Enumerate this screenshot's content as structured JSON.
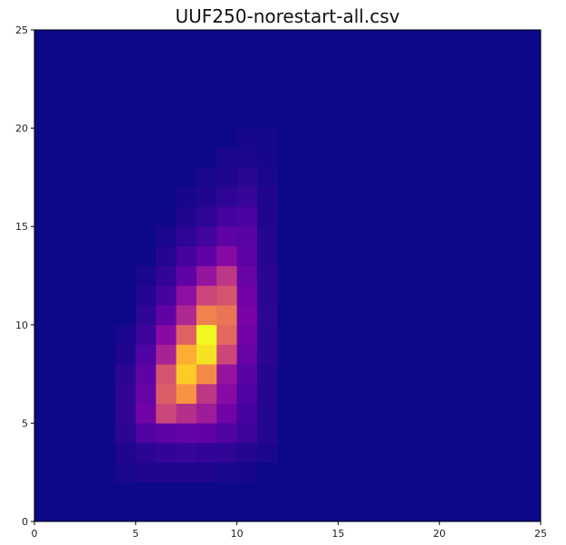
{
  "chart_data": {
    "type": "heatmap",
    "title": "UUF250-norestart-all.csv",
    "xlabel": "",
    "ylabel": "",
    "xlim": [
      0,
      25
    ],
    "ylim": [
      0,
      25
    ],
    "grid": false,
    "colormap": "plasma",
    "background_color": "#0d0887",
    "x_ticks": [
      "0",
      "5",
      "10",
      "15",
      "20",
      "25"
    ],
    "y_ticks": [
      "0",
      "5",
      "10",
      "15",
      "20",
      "25"
    ],
    "x_tick_values": [
      0,
      5,
      10,
      15,
      20,
      25
    ],
    "y_tick_values": [
      0,
      5,
      10,
      15,
      20,
      25
    ],
    "cell_size": 1,
    "cells": [
      {
        "x": 4,
        "y": 2,
        "v": 0.03
      },
      {
        "x": 5,
        "y": 2,
        "v": 0.04
      },
      {
        "x": 6,
        "y": 2,
        "v": 0.04
      },
      {
        "x": 7,
        "y": 2,
        "v": 0.04
      },
      {
        "x": 8,
        "y": 2,
        "v": 0.04
      },
      {
        "x": 9,
        "y": 2,
        "v": 0.03
      },
      {
        "x": 10,
        "y": 2,
        "v": 0.02
      },
      {
        "x": 4,
        "y": 3,
        "v": 0.04
      },
      {
        "x": 5,
        "y": 3,
        "v": 0.06
      },
      {
        "x": 6,
        "y": 3,
        "v": 0.08
      },
      {
        "x": 7,
        "y": 3,
        "v": 0.09
      },
      {
        "x": 8,
        "y": 3,
        "v": 0.08
      },
      {
        "x": 9,
        "y": 3,
        "v": 0.07
      },
      {
        "x": 10,
        "y": 3,
        "v": 0.05
      },
      {
        "x": 11,
        "y": 3,
        "v": 0.03
      },
      {
        "x": 4,
        "y": 4,
        "v": 0.06
      },
      {
        "x": 5,
        "y": 4,
        "v": 0.14
      },
      {
        "x": 6,
        "y": 4,
        "v": 0.17
      },
      {
        "x": 7,
        "y": 4,
        "v": 0.19
      },
      {
        "x": 8,
        "y": 4,
        "v": 0.18
      },
      {
        "x": 9,
        "y": 4,
        "v": 0.14
      },
      {
        "x": 10,
        "y": 4,
        "v": 0.1
      },
      {
        "x": 11,
        "y": 4,
        "v": 0.05
      },
      {
        "x": 4,
        "y": 5,
        "v": 0.08
      },
      {
        "x": 5,
        "y": 5,
        "v": 0.22
      },
      {
        "x": 6,
        "y": 5,
        "v": 0.5
      },
      {
        "x": 7,
        "y": 5,
        "v": 0.42
      },
      {
        "x": 8,
        "y": 5,
        "v": 0.35
      },
      {
        "x": 9,
        "y": 5,
        "v": 0.22
      },
      {
        "x": 10,
        "y": 5,
        "v": 0.12
      },
      {
        "x": 11,
        "y": 5,
        "v": 0.05
      },
      {
        "x": 4,
        "y": 6,
        "v": 0.08
      },
      {
        "x": 5,
        "y": 6,
        "v": 0.2
      },
      {
        "x": 6,
        "y": 6,
        "v": 0.58
      },
      {
        "x": 7,
        "y": 6,
        "v": 0.75
      },
      {
        "x": 8,
        "y": 6,
        "v": 0.45
      },
      {
        "x": 9,
        "y": 6,
        "v": 0.28
      },
      {
        "x": 10,
        "y": 6,
        "v": 0.14
      },
      {
        "x": 11,
        "y": 6,
        "v": 0.05
      },
      {
        "x": 4,
        "y": 7,
        "v": 0.06
      },
      {
        "x": 5,
        "y": 7,
        "v": 0.18
      },
      {
        "x": 6,
        "y": 7,
        "v": 0.55
      },
      {
        "x": 7,
        "y": 7,
        "v": 0.9
      },
      {
        "x": 8,
        "y": 7,
        "v": 0.72
      },
      {
        "x": 9,
        "y": 7,
        "v": 0.32
      },
      {
        "x": 10,
        "y": 7,
        "v": 0.16
      },
      {
        "x": 11,
        "y": 7,
        "v": 0.05
      },
      {
        "x": 4,
        "y": 8,
        "v": 0.04
      },
      {
        "x": 5,
        "y": 8,
        "v": 0.14
      },
      {
        "x": 6,
        "y": 8,
        "v": 0.38
      },
      {
        "x": 7,
        "y": 8,
        "v": 0.82
      },
      {
        "x": 8,
        "y": 8,
        "v": 0.95
      },
      {
        "x": 9,
        "y": 8,
        "v": 0.5
      },
      {
        "x": 10,
        "y": 8,
        "v": 0.2
      },
      {
        "x": 11,
        "y": 8,
        "v": 0.06
      },
      {
        "x": 4,
        "y": 9,
        "v": 0.03
      },
      {
        "x": 5,
        "y": 9,
        "v": 0.1
      },
      {
        "x": 6,
        "y": 9,
        "v": 0.28
      },
      {
        "x": 7,
        "y": 9,
        "v": 0.6
      },
      {
        "x": 8,
        "y": 9,
        "v": 1.0
      },
      {
        "x": 9,
        "y": 9,
        "v": 0.62
      },
      {
        "x": 10,
        "y": 9,
        "v": 0.22
      },
      {
        "x": 11,
        "y": 9,
        "v": 0.06
      },
      {
        "x": 5,
        "y": 10,
        "v": 0.07
      },
      {
        "x": 6,
        "y": 10,
        "v": 0.18
      },
      {
        "x": 7,
        "y": 10,
        "v": 0.4
      },
      {
        "x": 8,
        "y": 10,
        "v": 0.7
      },
      {
        "x": 9,
        "y": 10,
        "v": 0.66
      },
      {
        "x": 10,
        "y": 10,
        "v": 0.24
      },
      {
        "x": 11,
        "y": 10,
        "v": 0.07
      },
      {
        "x": 5,
        "y": 11,
        "v": 0.05
      },
      {
        "x": 6,
        "y": 11,
        "v": 0.12
      },
      {
        "x": 7,
        "y": 11,
        "v": 0.3
      },
      {
        "x": 8,
        "y": 11,
        "v": 0.5
      },
      {
        "x": 9,
        "y": 11,
        "v": 0.55
      },
      {
        "x": 10,
        "y": 11,
        "v": 0.22
      },
      {
        "x": 11,
        "y": 11,
        "v": 0.06
      },
      {
        "x": 5,
        "y": 12,
        "v": 0.03
      },
      {
        "x": 6,
        "y": 12,
        "v": 0.08
      },
      {
        "x": 7,
        "y": 12,
        "v": 0.18
      },
      {
        "x": 8,
        "y": 12,
        "v": 0.32
      },
      {
        "x": 9,
        "y": 12,
        "v": 0.45
      },
      {
        "x": 10,
        "y": 12,
        "v": 0.2
      },
      {
        "x": 11,
        "y": 12,
        "v": 0.06
      },
      {
        "x": 6,
        "y": 13,
        "v": 0.05
      },
      {
        "x": 7,
        "y": 13,
        "v": 0.12
      },
      {
        "x": 8,
        "y": 13,
        "v": 0.18
      },
      {
        "x": 9,
        "y": 13,
        "v": 0.28
      },
      {
        "x": 10,
        "y": 13,
        "v": 0.17
      },
      {
        "x": 11,
        "y": 13,
        "v": 0.05
      },
      {
        "x": 6,
        "y": 14,
        "v": 0.03
      },
      {
        "x": 7,
        "y": 14,
        "v": 0.07
      },
      {
        "x": 8,
        "y": 14,
        "v": 0.11
      },
      {
        "x": 9,
        "y": 14,
        "v": 0.18
      },
      {
        "x": 10,
        "y": 14,
        "v": 0.16
      },
      {
        "x": 11,
        "y": 14,
        "v": 0.05
      },
      {
        "x": 7,
        "y": 15,
        "v": 0.04
      },
      {
        "x": 8,
        "y": 15,
        "v": 0.07
      },
      {
        "x": 9,
        "y": 15,
        "v": 0.12
      },
      {
        "x": 10,
        "y": 15,
        "v": 0.13
      },
      {
        "x": 11,
        "y": 15,
        "v": 0.04
      },
      {
        "x": 7,
        "y": 16,
        "v": 0.02
      },
      {
        "x": 8,
        "y": 16,
        "v": 0.04
      },
      {
        "x": 9,
        "y": 16,
        "v": 0.07
      },
      {
        "x": 10,
        "y": 16,
        "v": 0.09
      },
      {
        "x": 11,
        "y": 16,
        "v": 0.04
      },
      {
        "x": 8,
        "y": 17,
        "v": 0.03
      },
      {
        "x": 9,
        "y": 17,
        "v": 0.04
      },
      {
        "x": 10,
        "y": 17,
        "v": 0.06
      },
      {
        "x": 11,
        "y": 17,
        "v": 0.03
      },
      {
        "x": 9,
        "y": 18,
        "v": 0.03
      },
      {
        "x": 10,
        "y": 18,
        "v": 0.03
      },
      {
        "x": 11,
        "y": 18,
        "v": 0.02
      },
      {
        "x": 10,
        "y": 19,
        "v": 0.02
      },
      {
        "x": 11,
        "y": 19,
        "v": 0.015
      }
    ]
  }
}
